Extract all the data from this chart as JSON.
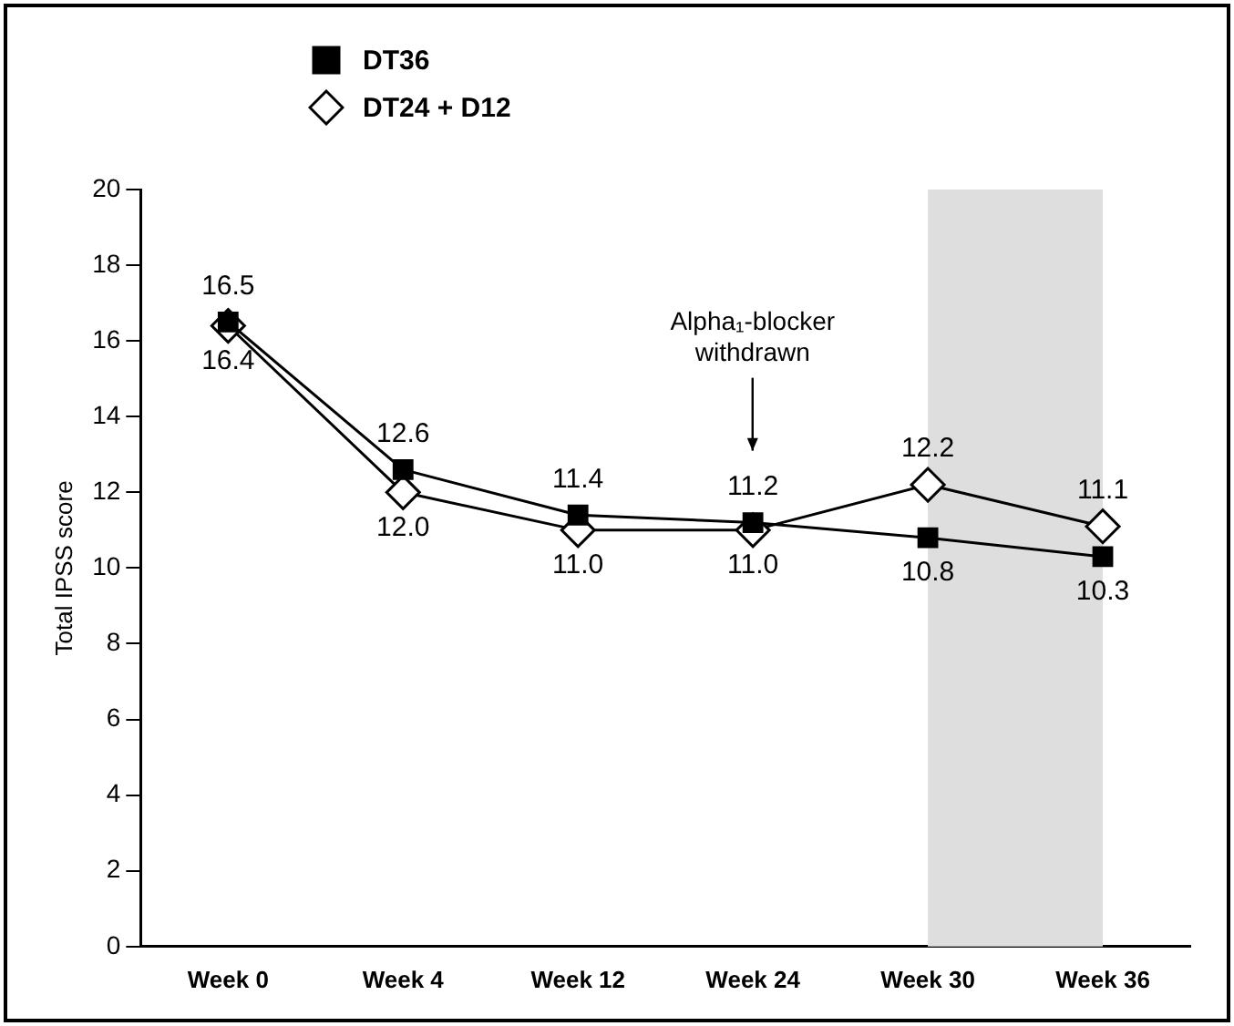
{
  "chart_data": {
    "type": "line",
    "ylabel": "Total IPSS score",
    "categories": [
      "Week 0",
      "Week 4",
      "Week 12",
      "Week 24",
      "Week 30",
      "Week 36"
    ],
    "series": [
      {
        "name": "DT36",
        "color": "#000000",
        "marker": "square",
        "values": [
          16.5,
          12.6,
          11.4,
          11.2,
          10.8,
          10.3
        ],
        "value_labels": [
          "16.5",
          "12.6",
          "11.4",
          "11.2",
          "10.8",
          "10.3"
        ]
      },
      {
        "name": "DT24 + D12",
        "color": "#000000",
        "marker": "diamond",
        "values": [
          16.4,
          12.0,
          11.0,
          11.0,
          12.2,
          11.1
        ],
        "value_labels": [
          "16.4",
          "12.0",
          "11.0",
          "11.0",
          "12.2",
          "11.1"
        ]
      }
    ],
    "ylim": [
      0,
      20
    ],
    "yticks": [
      0,
      2,
      4,
      6,
      8,
      10,
      12,
      14,
      16,
      18,
      20
    ],
    "grid": false,
    "legend": "top left",
    "bands": [
      {
        "axis": "x",
        "from": "Week 30",
        "to": "Week 36",
        "color": "#dedede"
      }
    ],
    "annotations": [
      "Alpha₁-blocker withdrawn"
    ]
  }
}
